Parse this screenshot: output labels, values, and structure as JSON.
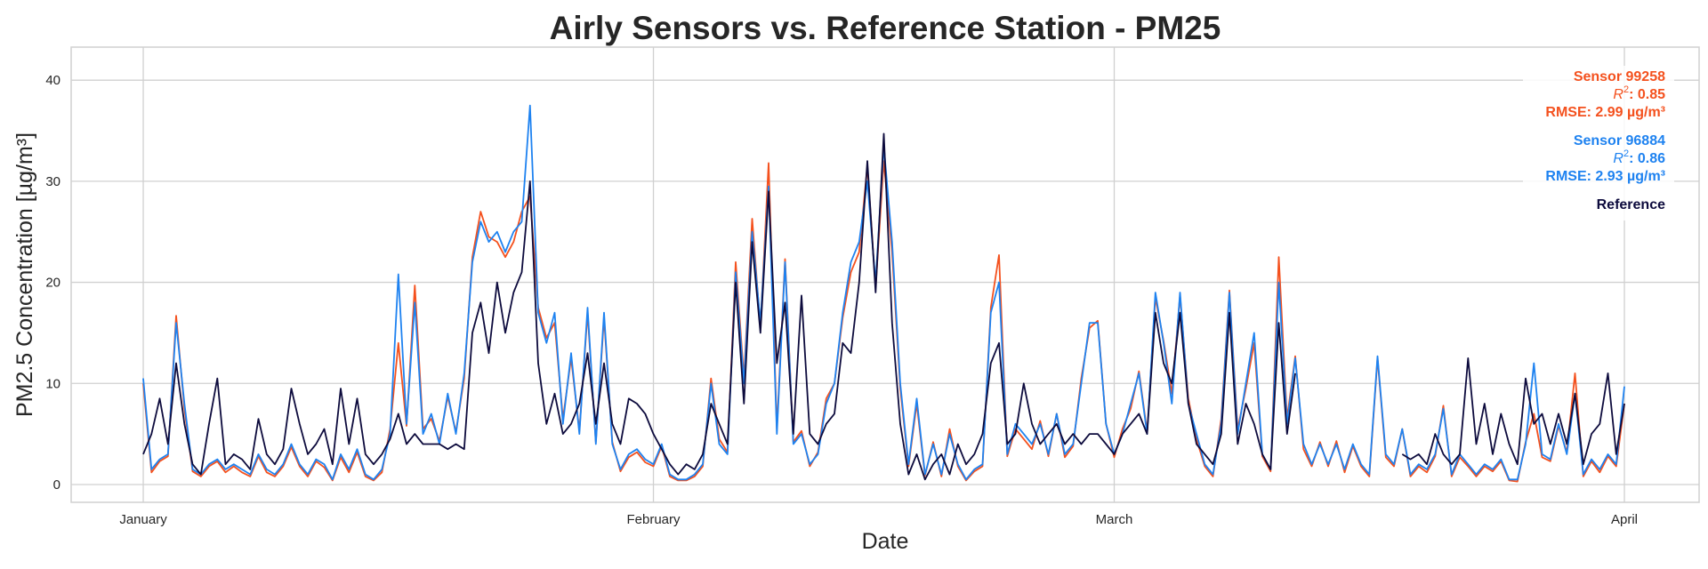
{
  "chart_data": {
    "type": "line",
    "title": "Airly Sensors vs. Reference Station - PM25",
    "xlabel": "Date",
    "ylabel": "PM2.5 Concentration [µg/m³]",
    "x_unit": "days since January 1",
    "x_step_days": 0.5,
    "xlim": [
      -4.38,
      94.54
    ],
    "ylim": [
      -1.76,
      43.27
    ],
    "grid": true,
    "xticks": [
      {
        "value": 0,
        "label": "January"
      },
      {
        "value": 31,
        "label": "February"
      },
      {
        "value": 59,
        "label": "March"
      },
      {
        "value": 90,
        "label": "April"
      }
    ],
    "yticks": [
      0,
      10,
      20,
      30,
      40
    ],
    "legend_placement": "top-right",
    "series": [
      {
        "name": "Sensor 99258",
        "color": "#f4511e",
        "r2_label": "R",
        "r2_value": ": 0.85",
        "rmse": "RMSE: 2.99 µg/m³",
        "values": [
          10,
          1.2,
          2.3,
          2.8,
          16.7,
          7.5,
          1.3,
          0.8,
          1.8,
          2.3,
          1.2,
          1.8,
          1.2,
          0.8,
          2.8,
          1.2,
          0.8,
          1.8,
          3.7,
          1.8,
          0.8,
          2.3,
          1.7,
          0.4,
          2.7,
          1.2,
          3.2,
          0.8,
          0.4,
          1.2,
          5.5,
          14,
          5.8,
          19.7,
          5.5,
          6.5,
          4.3,
          8.7,
          5.2,
          10.5,
          22.5,
          27,
          24.5,
          24,
          22.5,
          24,
          27,
          28.5,
          17.5,
          14.5,
          16,
          6.5,
          12.5,
          5.3,
          17,
          4.2,
          16.5,
          4.2,
          1.3,
          2.7,
          3.2,
          2.2,
          1.8,
          3.8,
          0.8,
          0.4,
          0.4,
          0.8,
          1.8,
          10.5,
          4.5,
          3.2,
          22,
          10.5,
          26.3,
          15.5,
          31.8,
          5.5,
          22.3,
          4.2,
          5.3,
          1.8,
          3.2,
          8.5,
          10,
          16.5,
          21,
          23,
          31.5,
          19.5,
          32,
          23,
          9.5,
          1.8,
          8,
          0.9,
          4.2,
          0.8,
          5.5,
          1.8,
          0.4,
          1.3,
          1.8,
          17.5,
          22.7,
          2.8,
          5.5,
          4.5,
          3.5,
          6.3,
          2.8,
          7,
          2.7,
          3.8,
          10.5,
          15.5,
          16.2,
          6,
          2.7,
          5.5,
          7.5,
          11.2,
          5.2,
          18.5,
          14.2,
          9,
          18.7,
          8.5,
          4.5,
          1.8,
          0.8,
          6.5,
          19.2,
          5.5,
          9.5,
          14,
          2.8,
          1.3,
          22.5,
          6.5,
          12.7,
          3.5,
          1.8,
          4.2,
          1.8,
          4.3,
          1.2,
          3.8,
          1.8,
          0.8,
          12.5,
          2.7,
          1.8,
          5.5,
          0.8,
          1.8,
          1.2,
          2.8,
          7.8,
          0.8,
          2.7,
          1.8,
          0.8,
          1.8,
          1.3,
          2.3,
          0.4,
          0.3,
          4.2,
          7,
          2.7,
          2.3,
          5.8,
          3.2,
          11,
          0.8,
          2.3,
          1.2,
          2.8,
          1.8,
          8
        ]
      },
      {
        "name": "Sensor 96884",
        "color": "#1e82f0",
        "r2_label": "R",
        "r2_value": ": 0.86",
        "rmse": "RMSE: 2.93 µg/m³",
        "values": [
          10.5,
          1.5,
          2.5,
          3,
          16,
          8,
          1.5,
          1,
          2,
          2.5,
          1.5,
          2,
          1.5,
          1,
          3,
          1.5,
          1,
          2,
          4,
          2,
          1,
          2.5,
          2,
          0.5,
          3,
          1.5,
          3.5,
          1,
          0.5,
          1.5,
          5,
          20.8,
          6,
          18,
          5,
          7,
          4,
          9,
          5,
          11,
          22,
          26,
          24,
          25,
          23,
          25,
          26,
          37.5,
          17,
          14,
          17,
          6,
          13,
          5,
          17.5,
          4,
          17,
          4,
          1.5,
          3,
          3.5,
          2.5,
          2,
          4,
          1,
          0.5,
          0.5,
          1,
          2,
          10,
          4,
          3,
          21,
          10,
          25,
          16,
          29.5,
          5,
          22,
          4,
          5,
          2,
          3,
          8,
          10,
          17,
          22,
          24,
          30,
          20,
          33.5,
          24,
          10,
          2,
          8.5,
          1,
          4,
          1,
          5,
          2,
          0.5,
          1.5,
          2,
          17,
          20,
          3,
          6,
          5,
          4,
          6,
          3,
          7,
          3,
          4,
          10,
          16,
          16,
          6,
          3,
          5,
          8,
          11,
          5,
          19,
          14,
          8,
          19,
          8,
          5,
          2,
          1,
          6,
          19,
          5,
          10,
          15,
          3,
          1.5,
          20,
          6,
          12.5,
          4,
          2,
          4,
          2,
          4,
          1.5,
          4,
          2,
          1,
          12.7,
          3,
          2,
          5.5,
          1,
          2,
          1.5,
          3,
          7.5,
          1,
          3,
          2,
          1,
          2,
          1.5,
          2.5,
          0.5,
          0.5,
          4,
          12,
          3,
          2.5,
          6,
          3,
          9,
          1,
          2.5,
          1.5,
          3,
          2,
          9.7
        ]
      },
      {
        "name": "Reference",
        "color": "#0d0b3d",
        "values": [
          3,
          5,
          8.5,
          4,
          12,
          6,
          2,
          1,
          6,
          10.5,
          2,
          3,
          2.5,
          1.5,
          6.5,
          3,
          2,
          3.5,
          9.5,
          6,
          3,
          4,
          5.5,
          2,
          9.5,
          4,
          8.5,
          3,
          2,
          3,
          4.5,
          7,
          4,
          5,
          4,
          4,
          4,
          3.5,
          4,
          3.5,
          15,
          18,
          13,
          20,
          15,
          19,
          21,
          30,
          12,
          6,
          9,
          5,
          6,
          8,
          13,
          6,
          12,
          6,
          4,
          8.5,
          8,
          7,
          5,
          3.5,
          2,
          1,
          2,
          1.5,
          3,
          8,
          6,
          4,
          20,
          8,
          24,
          15,
          29,
          12,
          18,
          5,
          18.7,
          5,
          4,
          6,
          7,
          14,
          13,
          20,
          32,
          19,
          34.7,
          16,
          6,
          1,
          3,
          0.5,
          2,
          3,
          1,
          4,
          2,
          3,
          5,
          12,
          14,
          4,
          5,
          10,
          6,
          4,
          5,
          6,
          4,
          5,
          4,
          5,
          5,
          4,
          3,
          5,
          6,
          7,
          5,
          17,
          12,
          10,
          17,
          8,
          4,
          3,
          2,
          5,
          17,
          4,
          8,
          6,
          3,
          1.5,
          16,
          5,
          11,
          null,
          null,
          null,
          null,
          null,
          null,
          null,
          null,
          null,
          null,
          null,
          null,
          3,
          2.5,
          3,
          2,
          5,
          3,
          2,
          3,
          12.5,
          4,
          8,
          3,
          7,
          4,
          2,
          10.5,
          6,
          7,
          4,
          7,
          4,
          9,
          2,
          5,
          6,
          11,
          3,
          8
        ]
      }
    ]
  }
}
